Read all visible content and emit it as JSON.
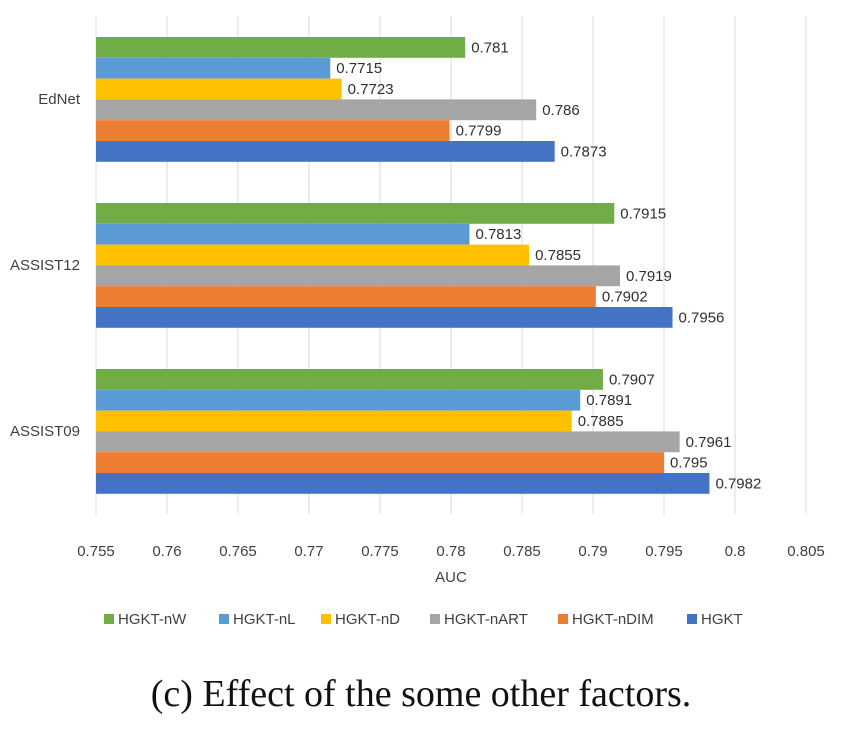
{
  "chart_data": {
    "type": "bar",
    "orientation": "horizontal",
    "categories": [
      "EdNet",
      "ASSIST12",
      "ASSIST09"
    ],
    "series": [
      {
        "name": "HGKT-nW",
        "color": "#70ad47",
        "values": [
          0.781,
          0.7915,
          0.7907
        ],
        "labels": [
          "0.781",
          "0.7915",
          "0.7907"
        ]
      },
      {
        "name": "HGKT-nL",
        "color": "#5b9bd5",
        "values": [
          0.7715,
          0.7813,
          0.7891
        ],
        "labels": [
          "0.7715",
          "0.7813",
          "0.7891"
        ]
      },
      {
        "name": "HGKT-nD",
        "color": "#ffc000",
        "values": [
          0.7723,
          0.7855,
          0.7885
        ],
        "labels": [
          "0.7723",
          "0.7855",
          "0.7885"
        ]
      },
      {
        "name": "HGKT-nART",
        "color": "#a5a5a5",
        "values": [
          0.786,
          0.7919,
          0.7961
        ],
        "labels": [
          "0.786",
          "0.7919",
          "0.7961"
        ]
      },
      {
        "name": "HGKT-nDIM",
        "color": "#ed7d31",
        "values": [
          0.7799,
          0.7902,
          0.795
        ],
        "labels": [
          "0.7799",
          "0.7902",
          "0.795"
        ]
      },
      {
        "name": "HGKT",
        "color": "#4472c4",
        "values": [
          0.7873,
          0.7956,
          0.7982
        ],
        "labels": [
          "0.7873",
          "0.7956",
          "0.7982"
        ]
      }
    ],
    "xlabel": "AUC",
    "xlim": [
      0.755,
      0.805
    ],
    "xticks": [
      "0.755",
      "0.76",
      "0.765",
      "0.77",
      "0.775",
      "0.78",
      "0.785",
      "0.79",
      "0.795",
      "0.8",
      "0.805"
    ],
    "grid": true,
    "legend": "bottom"
  },
  "caption": "(c) Effect of the some other factors."
}
